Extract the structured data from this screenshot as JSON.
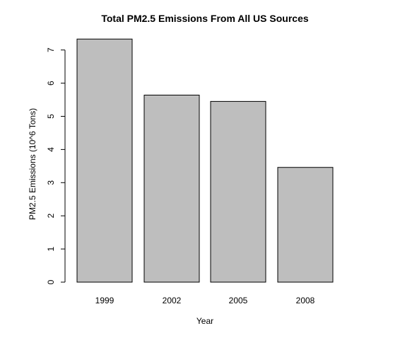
{
  "chart_data": {
    "type": "bar",
    "title": "Total PM2.5 Emissions From All US Sources",
    "xlabel": "Year",
    "ylabel": "PM2.5 Emissions (10^6 Tons)",
    "categories": [
      "1999",
      "2002",
      "2005",
      "2008"
    ],
    "values": [
      7.33,
      5.64,
      5.45,
      3.46
    ],
    "ylim": [
      0,
      7.33
    ],
    "yticks": [
      0,
      1,
      2,
      3,
      4,
      5,
      6,
      7
    ],
    "grid": false,
    "legend": "none",
    "bar_color": "#bebebe",
    "bar_border_color": "#000000"
  }
}
